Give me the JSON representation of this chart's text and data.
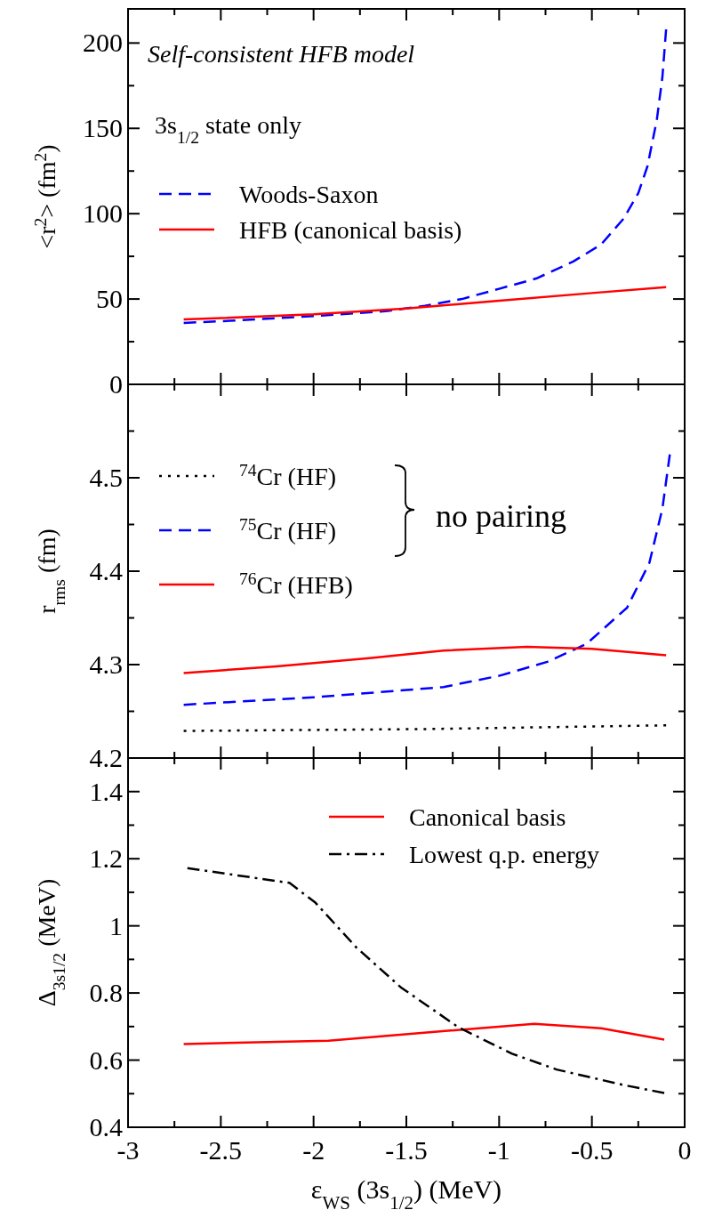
{
  "chart_data": [
    {
      "type": "line",
      "ylabel": "<r$^{2}$>  (fm$^{2}$)",
      "xlim": [
        -3,
        0
      ],
      "ylim": [
        0,
        220
      ],
      "tick_labels": "y",
      "legend": "left",
      "xticks": [
        -3,
        {
          "value": -2.75,
          "label": null
        },
        -2.5,
        {
          "value": -2.25,
          "label": null
        },
        -2,
        {
          "value": -1.75,
          "label": null
        },
        -1.5,
        {
          "value": -1.25,
          "label": null
        },
        -1,
        {
          "value": -0.75,
          "label": null
        },
        -0.5,
        {
          "value": -0.25,
          "label": null
        },
        0
      ],
      "yticks": [
        0,
        {
          "value": 25,
          "label": null
        },
        50,
        {
          "value": 75,
          "label": null
        },
        100,
        {
          "value": 125,
          "label": null
        },
        150,
        {
          "value": 175,
          "label": null
        },
        200
      ],
      "annotations": [
        "Self-consistent HFB model",
        "3s$_{1/2}$ state only"
      ],
      "series": [
        {
          "name": "Woods-Saxon",
          "color": "#0000ff",
          "line_style": "dashed",
          "x": [
            -2.7,
            -2.4,
            -2,
            -1.6,
            -1.4,
            -1.2,
            -1,
            -0.8,
            -0.6,
            -0.45,
            -0.33,
            -0.25,
            -0.2,
            -0.15,
            -0.12,
            -0.1
          ],
          "values": [
            36,
            37.5,
            40,
            43,
            46,
            50,
            56,
            62,
            72,
            82,
            97,
            112,
            128,
            155,
            180,
            208
          ]
        },
        {
          "name": "HFB (canonical basis)",
          "color": "#ff0000",
          "line_style": "solid",
          "x": [
            -2.7,
            -2,
            -1.5,
            -1,
            -0.5,
            -0.1
          ],
          "values": [
            38,
            41,
            44.5,
            49,
            53.5,
            57
          ]
        }
      ]
    },
    {
      "type": "line",
      "ylabel": "r$_{rms}$  (fm)",
      "xlim": [
        -3,
        0
      ],
      "ylim": [
        4.2,
        4.6
      ],
      "tick_labels": "y",
      "legend": "top left",
      "xticks": [
        -3,
        {
          "value": -2.75,
          "label": null
        },
        -2.5,
        {
          "value": -2.25,
          "label": null
        },
        -2,
        {
          "value": -1.75,
          "label": null
        },
        -1.5,
        {
          "value": -1.25,
          "label": null
        },
        -1,
        {
          "value": -0.75,
          "label": null
        },
        -0.5,
        {
          "value": -0.25,
          "label": null
        },
        0
      ],
      "yticks": [
        {
          "value": 4.2,
          "label": "4.2"
        },
        {
          "value": 4.25,
          "label": null
        },
        {
          "value": 4.3,
          "label": "4.3"
        },
        {
          "value": 4.35,
          "label": null
        },
        {
          "value": 4.4,
          "label": "4.4"
        },
        {
          "value": 4.45,
          "label": null
        },
        {
          "value": 4.5,
          "label": "4.5"
        },
        {
          "value": 4.55,
          "label": null
        }
      ],
      "annotations": [
        "no pairing"
      ],
      "series": [
        {
          "name": "$^{74}$Cr (HF)",
          "color": "#000000",
          "line_style": "dotted",
          "x": [
            -2.7,
            -1.4,
            -0.1
          ],
          "values": [
            4.229,
            4.231,
            4.235
          ]
        },
        {
          "name": "$^{75}$Cr (HF)",
          "color": "#0000ff",
          "line_style": "dashed",
          "x": [
            -2.7,
            -2,
            -1.3,
            -1,
            -0.74,
            -0.53,
            -0.31,
            -0.19,
            -0.12,
            -0.08
          ],
          "values": [
            4.257,
            4.265,
            4.276,
            4.288,
            4.303,
            4.322,
            4.361,
            4.409,
            4.467,
            4.525
          ]
        },
        {
          "name": "$^{76}$Cr (HFB)",
          "color": "#ff0000",
          "line_style": "solid",
          "x": [
            -2.7,
            -2.2,
            -1.7,
            -1.3,
            -0.85,
            -0.5,
            -0.1
          ],
          "values": [
            4.291,
            4.298,
            4.307,
            4.315,
            4.319,
            4.317,
            4.31
          ]
        }
      ]
    },
    {
      "type": "line",
      "ylabel": "Δ$_{3s1/2}$  (MeV)",
      "xlabel": "ε$_{WS}$ (3s$_{1/2}$)   (MeV)",
      "xlim": [
        -3,
        0
      ],
      "ylim": [
        0.4,
        1.5
      ],
      "legend": "top right",
      "xticks": [
        -3,
        {
          "value": -2.75,
          "label": null
        },
        -2.5,
        {
          "value": -2.25,
          "label": null
        },
        -2,
        {
          "value": -1.75,
          "label": null
        },
        -1.5,
        {
          "value": -1.25,
          "label": null
        },
        -1,
        {
          "value": -0.75,
          "label": null
        },
        -0.5,
        {
          "value": -0.25,
          "label": null
        },
        0
      ],
      "yticks": [
        0.4,
        {
          "value": 0.5,
          "label": null
        },
        0.6,
        {
          "value": 0.7,
          "label": null
        },
        0.8,
        {
          "value": 0.9,
          "label": null
        },
        1,
        {
          "value": 1.1,
          "label": null
        },
        1.2,
        {
          "value": 1.3,
          "label": null
        },
        1.4
      ],
      "series": [
        {
          "name": "Canonical basis",
          "color": "#ff0000",
          "line_style": "solid",
          "x": [
            -2.7,
            -1.92,
            -1.29,
            -0.81,
            -0.45,
            -0.11
          ],
          "values": [
            0.648,
            0.658,
            0.687,
            0.708,
            0.695,
            0.661
          ]
        },
        {
          "name": "Lowest q.p. energy",
          "color": "#000000",
          "line_style": "dashdot",
          "x": [
            -2.68,
            -2.13,
            -1.99,
            -1.77,
            -1.53,
            -1.22,
            -0.93,
            -0.69,
            -0.33,
            -0.11
          ],
          "values": [
            1.172,
            1.128,
            1.069,
            0.936,
            0.817,
            0.698,
            0.619,
            0.572,
            0.526,
            0.502
          ]
        }
      ]
    }
  ]
}
